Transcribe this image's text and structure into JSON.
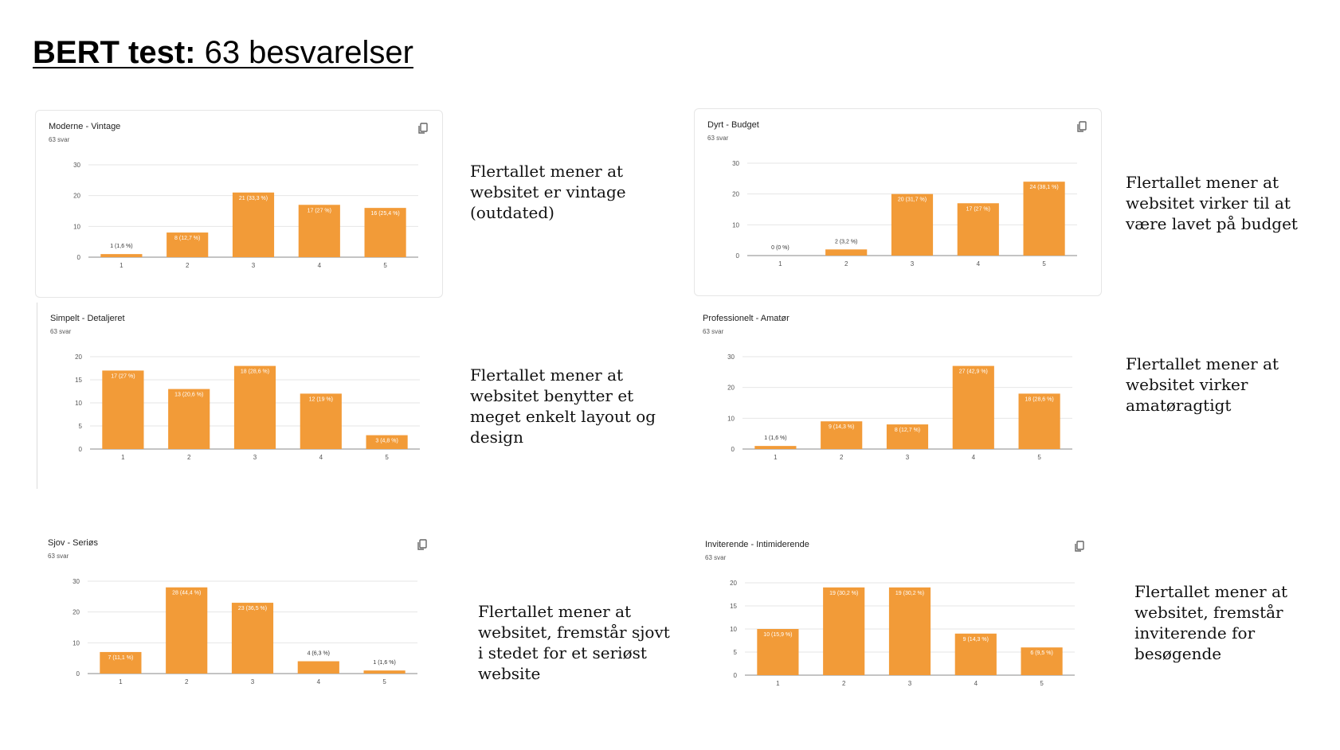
{
  "slide": {
    "title_bold": "BERT test:",
    "title_rest": " 63 besvarelser"
  },
  "colors": {
    "bar": "#f29b38",
    "grid": "#e6e6e6",
    "axis": "#555555",
    "label_in": "#ffffff",
    "label_out": "#333333"
  },
  "icons": {
    "copy": "copy-icon"
  },
  "chart_data": [
    {
      "type": "bar",
      "title": "Moderne - Vintage",
      "subtitle": "63 svar",
      "categories": [
        "1",
        "2",
        "3",
        "4",
        "5"
      ],
      "values": [
        1,
        8,
        21,
        17,
        16
      ],
      "data_labels": [
        "1 (1,6 %)",
        "8 (12,7 %)",
        "21 (33,3 %)",
        "17 (27 %)",
        "16 (25,4 %)"
      ],
      "ylim": [
        0,
        30
      ],
      "yticks": [
        "0",
        "10",
        "20",
        "30"
      ],
      "grid": true
    },
    {
      "type": "bar",
      "title": "Dyrt - Budget",
      "subtitle": "63 svar",
      "categories": [
        "1",
        "2",
        "3",
        "4",
        "5"
      ],
      "values": [
        0,
        2,
        20,
        17,
        24
      ],
      "data_labels": [
        "0 (0 %)",
        "2 (3,2 %)",
        "20 (31,7 %)",
        "17 (27 %)",
        "24 (38,1 %)"
      ],
      "ylim": [
        0,
        30
      ],
      "yticks": [
        "0",
        "10",
        "20",
        "30"
      ],
      "grid": true
    },
    {
      "type": "bar",
      "title": "Simpelt - Detaljeret",
      "subtitle": "63 svar",
      "categories": [
        "1",
        "2",
        "3",
        "4",
        "5"
      ],
      "values": [
        17,
        13,
        18,
        12,
        3
      ],
      "data_labels": [
        "17 (27 %)",
        "13 (20,6 %)",
        "18 (28,6 %)",
        "12 (19 %)",
        "3 (4,8 %)"
      ],
      "ylim": [
        0,
        20
      ],
      "yticks": [
        "0",
        "5",
        "10",
        "15",
        "20"
      ],
      "grid": true
    },
    {
      "type": "bar",
      "title": "Professionelt - Amatør",
      "subtitle": "63 svar",
      "categories": [
        "1",
        "2",
        "3",
        "4",
        "5"
      ],
      "values": [
        1,
        9,
        8,
        27,
        18
      ],
      "data_labels": [
        "1 (1,6 %)",
        "9 (14,3 %)",
        "8 (12,7 %)",
        "27 (42,9 %)",
        "18 (28,6 %)"
      ],
      "ylim": [
        0,
        30
      ],
      "yticks": [
        "0",
        "10",
        "20",
        "30"
      ],
      "grid": true
    },
    {
      "type": "bar",
      "title": "Sjov - Seriøs",
      "subtitle": "63 svar",
      "categories": [
        "1",
        "2",
        "3",
        "4",
        "5"
      ],
      "values": [
        7,
        28,
        23,
        4,
        1
      ],
      "data_labels": [
        "7 (11,1 %)",
        "28 (44,4 %)",
        "23 (36,5 %)",
        "4 (6,3 %)",
        "1 (1,6 %)"
      ],
      "ylim": [
        0,
        30
      ],
      "yticks": [
        "0",
        "10",
        "20",
        "30"
      ],
      "grid": true
    },
    {
      "type": "bar",
      "title": "Inviterende - Intimiderende",
      "subtitle": "63 svar",
      "categories": [
        "1",
        "2",
        "3",
        "4",
        "5"
      ],
      "values": [
        10,
        19,
        19,
        9,
        6
      ],
      "data_labels": [
        "10 (15,9 %)",
        "19 (30,2 %)",
        "19 (30,2 %)",
        "9 (14,3 %)",
        "6 (9,5 %)"
      ],
      "ylim": [
        0,
        20
      ],
      "yticks": [
        "0",
        "5",
        "10",
        "15",
        "20"
      ],
      "grid": true
    }
  ],
  "captions": [
    [
      "Flertallet mener at",
      "websitet er vintage",
      "(outdated)"
    ],
    [
      "Flertallet mener at",
      "websitet virker til at",
      "være lavet på budget"
    ],
    [
      "Flertallet mener at",
      "websitet benytter et",
      "meget enkelt layout og",
      "design"
    ],
    [
      "Flertallet mener at",
      "websitet virker",
      "amatøragtigt"
    ],
    [
      "Flertallet mener at",
      "websitet, fremstår sjovt",
      "i stedet for et seriøst",
      "website"
    ],
    [
      "Flertallet mener at",
      "websitet, fremstår",
      "inviterende for",
      "besøgende"
    ]
  ]
}
